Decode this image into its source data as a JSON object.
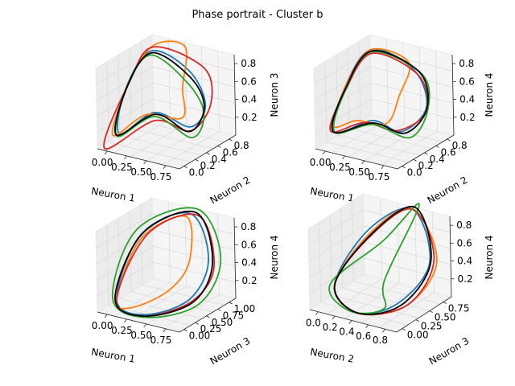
{
  "title": "Phase portrait - Cluster b",
  "series_colors": [
    "#1f77b4",
    "#ff7f0e",
    "#d62728",
    "#2ca02c",
    "#000000"
  ],
  "chart_data": [
    {
      "type": "line3d",
      "xlabel": "Neuron 1",
      "ylabel": "Neuron 2",
      "zlabel": "Neuron 3",
      "xticks": [
        "0.00",
        "0.25",
        "0.50",
        "0.75"
      ],
      "yticks": [
        "0.0",
        "0.2",
        "0.4",
        "0.6",
        "0.8"
      ],
      "zticks": [
        "0.2",
        "0.4",
        "0.6",
        "0.8"
      ],
      "xlim": [
        -0.05,
        1.0
      ],
      "ylim": [
        -0.05,
        1.0
      ],
      "zlim": [
        0.0,
        1.0
      ]
    },
    {
      "type": "line3d",
      "xlabel": "Neuron 1",
      "ylabel": "Neuron 2",
      "zlabel": "Neuron 4",
      "xticks": [
        "0.00",
        "0.25",
        "0.50",
        "0.75"
      ],
      "yticks": [
        "0.0",
        "0.2",
        "0.4",
        "0.6",
        "0.8"
      ],
      "zticks": [
        "0.2",
        "0.4",
        "0.6",
        "0.8"
      ],
      "xlim": [
        -0.05,
        1.0
      ],
      "ylim": [
        -0.05,
        1.0
      ],
      "zlim": [
        0.0,
        1.0
      ]
    },
    {
      "type": "line3d",
      "xlabel": "Neuron 1",
      "ylabel": "Neuron 3",
      "zlabel": "Neuron 4",
      "xticks": [
        "0.00",
        "0.25",
        "0.50",
        "0.75"
      ],
      "yticks": [
        "0.00",
        "0.25",
        "0.50",
        "0.75",
        "1.00"
      ],
      "zticks": [
        "0.2",
        "0.4",
        "0.6",
        "0.8"
      ],
      "xlim": [
        -0.05,
        1.0
      ],
      "ylim": [
        -0.05,
        1.05
      ],
      "zlim": [
        0.0,
        1.0
      ]
    },
    {
      "type": "line3d",
      "xlabel": "Neuron 2",
      "ylabel": "Neuron 3",
      "zlabel": "Neuron 4",
      "xticks": [
        "0.0",
        "0.2",
        "0.4",
        "0.6",
        "0.8"
      ],
      "yticks": [
        "0.00",
        "0.25",
        "0.50",
        "0.75"
      ],
      "zticks": [
        "0.2",
        "0.4",
        "0.6",
        "0.8"
      ],
      "xlim": [
        -0.05,
        1.0
      ],
      "ylim": [
        -0.05,
        1.0
      ],
      "zlim": [
        0.0,
        1.0
      ]
    }
  ]
}
